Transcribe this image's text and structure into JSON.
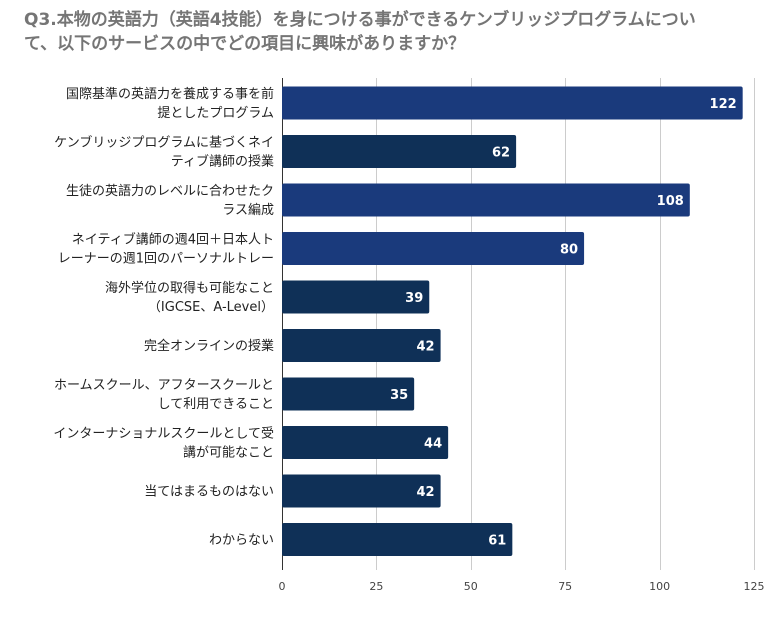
{
  "chart_data": {
    "type": "bar",
    "orientation": "horizontal",
    "title_lines": [
      "Q3.本物の英語力（英語4技能）を身につける事ができるケンブリッジプログラムについ",
      "て、以下のサービスの中でどの項目に興味がありますか？"
    ],
    "categories": [
      [
        "国際基準の英語力を養成する事を前",
        "提としたプログラム"
      ],
      [
        "ケンブリッジプログラムに基づくネイ",
        "ティブ講師の授業"
      ],
      [
        "生徒の英語力のレベルに合わせたク",
        "ラス編成"
      ],
      [
        "ネイティブ講師の週4回＋日本人ト",
        "レーナーの週1回のパーソナルトレー"
      ],
      [
        "海外学位の取得も可能なこと",
        "（IGCSE、A-Level）"
      ],
      [
        "完全オンラインの授業"
      ],
      [
        "ホームスクール、アフタースクールと",
        "して利用できること"
      ],
      [
        "インターナショナルスクールとして受",
        "講が可能なこと"
      ],
      [
        "当てはまるものはない"
      ],
      [
        "わからない"
      ]
    ],
    "values": [
      122,
      62,
      108,
      80,
      39,
      42,
      35,
      44,
      42,
      61
    ],
    "xlim": [
      0,
      125
    ],
    "xticks": [
      0,
      25,
      50,
      75,
      100,
      125
    ],
    "grid": true,
    "legend": "none",
    "colors": {
      "dark_navy": "#0f3057",
      "royal_navy": "#1a3a7c"
    },
    "bar_colors": [
      "#1a3a7c",
      "#0f3057",
      "#1a3a7c",
      "#1a3a7c",
      "#0f3057",
      "#0f3057",
      "#0f3057",
      "#0f3057",
      "#0f3057",
      "#0f3057"
    ]
  }
}
